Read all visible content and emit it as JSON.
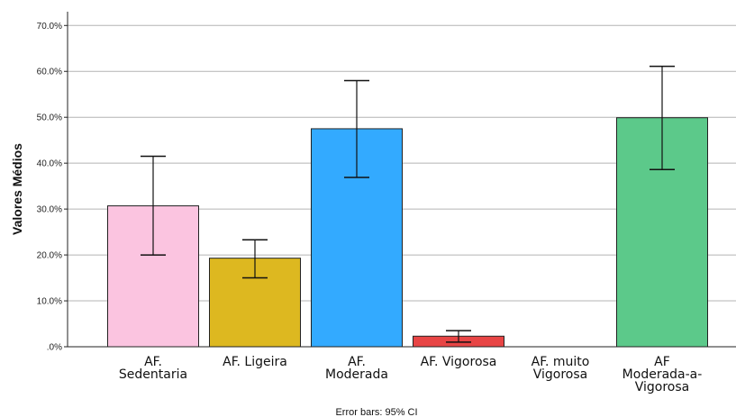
{
  "chart_data": {
    "type": "bar",
    "title": "",
    "xlabel": "",
    "ylabel": "Valores Médios",
    "footnote": "Error bars: 95% CI",
    "ylim": [
      0,
      0.73
    ],
    "yticks": [
      0,
      0.1,
      0.2,
      0.3,
      0.4,
      0.5,
      0.6,
      0.7
    ],
    "ytick_labels": [
      ".0%",
      "10.0%",
      "20.0%",
      "30.0%",
      "40.0%",
      "50.0%",
      "60.0%",
      "70.0%"
    ],
    "grid": true,
    "categories": [
      [
        "AF.",
        "Sedentaria"
      ],
      [
        "AF. Ligeira"
      ],
      [
        "AF.",
        "Moderada"
      ],
      [
        "AF. Vigorosa"
      ],
      [
        "AF. muito",
        "Vigorosa"
      ],
      [
        "AF",
        "Moderada-a-",
        "Vigorosa"
      ]
    ],
    "values": [
      0.307,
      0.193,
      0.475,
      0.023,
      0.0,
      0.499
    ],
    "ci_low": [
      0.2,
      0.15,
      0.369,
      0.01,
      null,
      0.386
    ],
    "ci_high": [
      0.415,
      0.233,
      0.58,
      0.035,
      null,
      0.611
    ],
    "colors": [
      "#fbc4e0",
      "#ddb820",
      "#33aaff",
      "#e84545",
      "#cccccc",
      "#5cc98a"
    ]
  }
}
